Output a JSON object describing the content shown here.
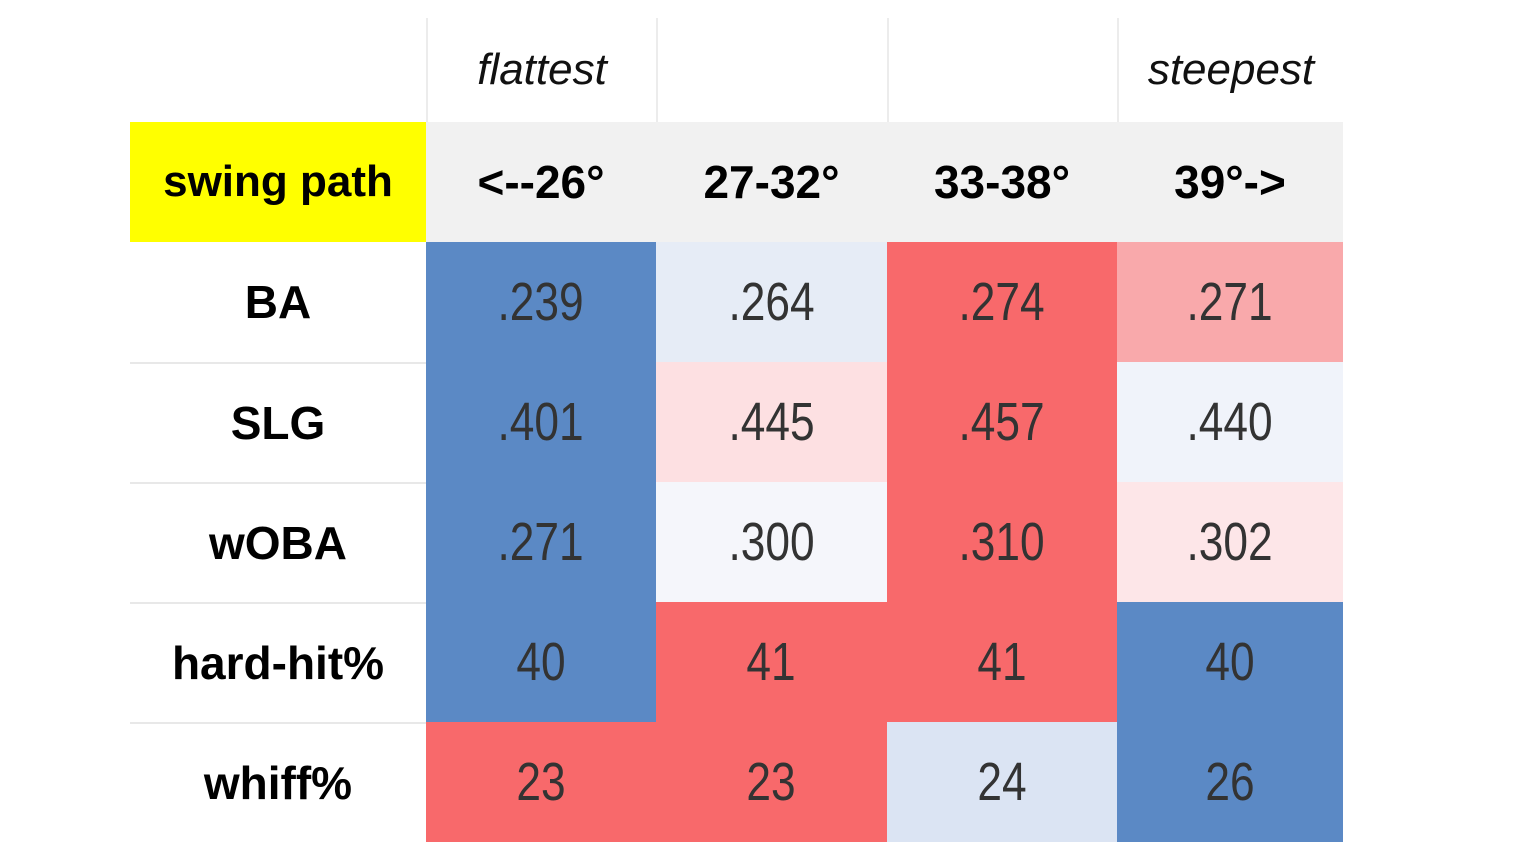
{
  "chart_data": {
    "type": "table",
    "title": "",
    "corner_label": "swing path",
    "descriptors": [
      "flattest",
      "",
      "",
      "steepest"
    ],
    "columns": [
      "<--26°",
      "27-32°",
      "33-38°",
      "39°->"
    ],
    "rows": [
      {
        "metric": "BA",
        "values": [
          ".239",
          ".264",
          ".274",
          ".271"
        ],
        "colors": [
          "#5b89c5",
          "#e6ecf6",
          "#f8696b",
          "#f9a9ab"
        ]
      },
      {
        "metric": "SLG",
        "values": [
          ".401",
          ".445",
          ".457",
          ".440"
        ],
        "colors": [
          "#5b89c5",
          "#fde0e2",
          "#f8696b",
          "#f0f3fa"
        ]
      },
      {
        "metric": "wOBA",
        "values": [
          ".271",
          ".300",
          ".310",
          ".302"
        ],
        "colors": [
          "#5b89c5",
          "#f5f6fb",
          "#f8696b",
          "#fde6e8"
        ]
      },
      {
        "metric": "hard-hit%",
        "values": [
          "40",
          "41",
          "41",
          "40"
        ],
        "colors": [
          "#5b89c5",
          "#f8696b",
          "#f8696b",
          "#5b89c5"
        ]
      },
      {
        "metric": "whiff%",
        "values": [
          "23",
          "23",
          "24",
          "26"
        ],
        "colors": [
          "#f8696b",
          "#f8696b",
          "#dbe4f3",
          "#5b89c5"
        ]
      }
    ],
    "color_scale": {
      "low": "#5b89c5",
      "mid": "#f8f8fc",
      "high": "#f8696b"
    },
    "header_highlight": "#ffff00"
  }
}
